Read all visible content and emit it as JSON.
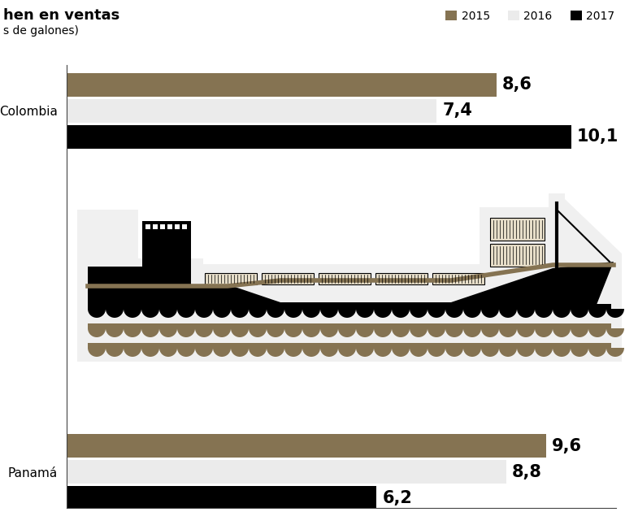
{
  "chart_data": {
    "type": "bar",
    "orientation": "horizontal",
    "title": "hen en ventas",
    "subtitle": "s de galones)",
    "categories": [
      "Colombia",
      "Panamá"
    ],
    "series": [
      {
        "name": "2015",
        "color": "#857352",
        "values": [
          8.6,
          9.6
        ],
        "value_labels": [
          "8,6",
          "9,6"
        ]
      },
      {
        "name": "2016",
        "color": "#ebebeb",
        "values": [
          7.4,
          8.8
        ],
        "value_labels": [
          "7,4",
          "8,8"
        ]
      },
      {
        "name": "2017",
        "color": "#000000",
        "values": [
          10.1,
          6.2
        ],
        "value_labels": [
          "10,1",
          "6,2"
        ]
      }
    ],
    "xlim": [
      0,
      11
    ],
    "data_labels": true,
    "tick_labels": "y",
    "legend": "upper right"
  }
}
